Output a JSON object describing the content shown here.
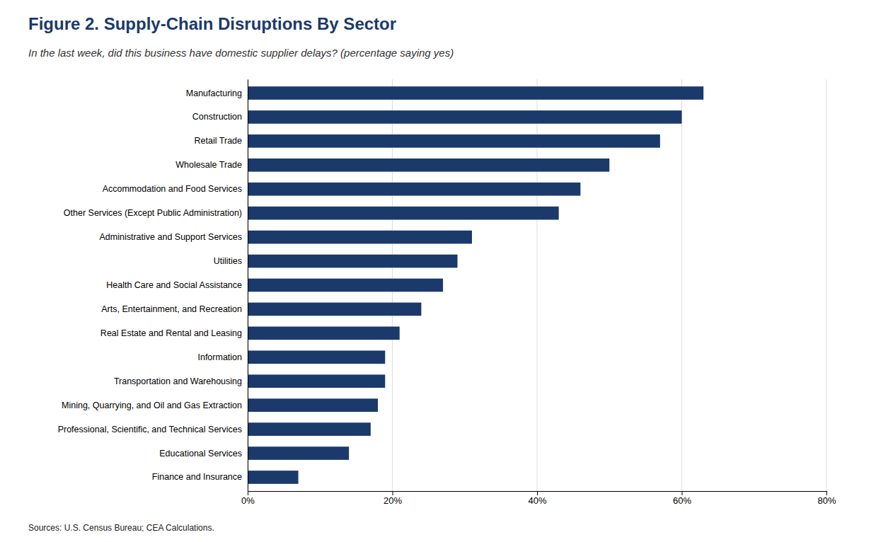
{
  "chart_data": {
    "type": "bar",
    "orientation": "horizontal",
    "title": "Figure 2. Supply-Chain Disruptions By Sector",
    "subtitle": "In the last week, did this business have domestic supplier delays? (percentage saying yes)",
    "source": "Sources: U.S. Census Bureau; CEA Calculations.",
    "categories": [
      "Finance and Insurance",
      "Educational Services",
      "Professional, Scientific, and Technical Services",
      "Mining, Quarrying, and Oil and Gas Extraction",
      "Transportation and Warehousing",
      "Information",
      "Real Estate and Rental and Leasing",
      "Arts, Entertainment, and Recreation",
      "Health Care and Social Assistance",
      "Utilities",
      "Administrative and Support Services",
      "Other Services (Except Public Administration)",
      "Accommodation and Food Services",
      "Wholesale Trade",
      "Retail Trade",
      "Construction",
      "Manufacturing"
    ],
    "values": [
      7,
      14,
      17,
      18,
      19,
      19,
      21,
      24,
      27,
      29,
      31,
      43,
      46,
      50,
      57,
      60,
      63
    ],
    "color": "#1b3a6b",
    "xlim": [
      0,
      80
    ],
    "xticks": [
      {
        "value": 0,
        "label": "0%"
      },
      {
        "value": 20,
        "label": "20%"
      },
      {
        "value": 40,
        "label": "40%"
      },
      {
        "value": 60,
        "label": "60%"
      },
      {
        "value": 80,
        "label": "80%"
      }
    ],
    "grid": true
  }
}
